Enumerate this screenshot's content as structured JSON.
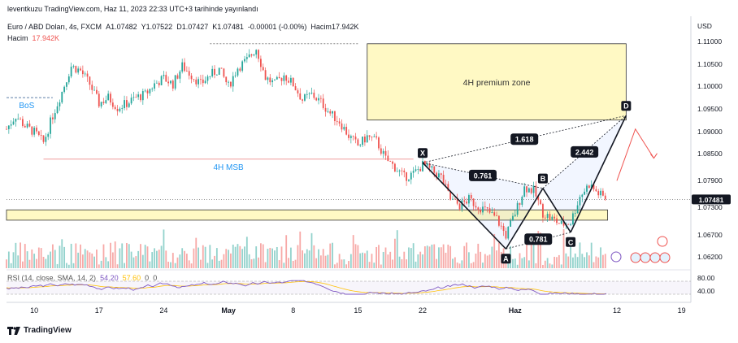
{
  "header": {
    "attribution": "leventkuzu TradingView.com, Haz 11, 2023 22:33 UTC+3 tarihinde yayınlandı",
    "symbol": "Euro / ABD Doları, 4s, FXCM",
    "a_label": "A",
    "a_value": "1.07482",
    "y_label": "Y",
    "y_value": "1.07522",
    "d_label": "D",
    "d_value": "1.07427",
    "k_label": "K",
    "k_value": "1.07481",
    "change": "-0.00001 (-0.00%)",
    "volume_label": "Hacim",
    "volume_value": "17.942K",
    "volume_row_label": "Hacim",
    "volume_row_value": "17.942K",
    "rsi_label": "RSI (14, close, SMA, 14, 2)",
    "rsi_value": "54.20",
    "rsi_ma_value": "57.60",
    "rsi_extra_1": "0",
    "rsi_extra_2": "0"
  },
  "axis": {
    "currency": "USD",
    "price_ticks": [
      "1.11000",
      "1.10500",
      "1.10000",
      "1.09500",
      "1.09000",
      "1.08500",
      "1.07900",
      "1.07300",
      "1.06700",
      "1.06200"
    ],
    "current_price": "1.07481",
    "rsi_ticks": [
      "80.00",
      "40.00"
    ],
    "time_ticks": [
      "10",
      "17",
      "24",
      "May",
      "8",
      "15",
      "22",
      "Haz",
      "12",
      "19"
    ]
  },
  "annotations": {
    "premium_zone": "4H premium zone",
    "msb": "4H MSB",
    "bos": "BoS",
    "points": [
      "X",
      "A",
      "B",
      "C",
      "D"
    ],
    "ratios": [
      "1.618",
      "2.442",
      "0.761",
      "0.781"
    ]
  },
  "colors": {
    "up": "#26a69a",
    "down": "#ef5350",
    "zone": "#fff9c4",
    "zone_border": "#333333",
    "msb_line": "#ef9a9a",
    "bos_line": "#5d7fa8",
    "rsi_line": "#7e57c2",
    "rsi_ma": "#ffc107",
    "premium_text": "#333333"
  },
  "chart_data": {
    "type": "candlestick",
    "symbol": "Euro / ABD Doları",
    "timeframe": "4s",
    "last_ohlc": {
      "open": 1.07482,
      "high": 1.07522,
      "low": 1.07427,
      "close": 1.07481
    },
    "ylim": [
      1.0595,
      1.112
    ],
    "price_path": [
      [
        "2023-04-07",
        1.0905
      ],
      [
        "2023-04-08",
        1.0935
      ],
      [
        "2023-04-09",
        1.0912
      ],
      [
        "2023-04-10",
        1.0898
      ],
      [
        "2023-04-11",
        1.0875
      ],
      [
        "2023-04-12",
        1.0935
      ],
      [
        "2023-04-13",
        1.0988
      ],
      [
        "2023-04-14",
        1.1045
      ],
      [
        "2023-04-15",
        1.1035
      ],
      [
        "2023-04-16",
        1.1005
      ],
      [
        "2023-04-17",
        1.0962
      ],
      [
        "2023-04-18",
        1.0975
      ],
      [
        "2023-04-19",
        1.0953
      ],
      [
        "2023-04-20",
        1.0962
      ],
      [
        "2023-04-21",
        1.0975
      ],
      [
        "2023-04-22",
        1.0982
      ],
      [
        "2023-04-23",
        1.1005
      ],
      [
        "2023-04-24",
        1.1018
      ],
      [
        "2023-04-25",
        1.1005
      ],
      [
        "2023-04-26",
        1.1045
      ],
      [
        "2023-04-27",
        1.1025
      ],
      [
        "2023-04-28",
        1.1005
      ],
      [
        "2023-04-29",
        1.1025
      ],
      [
        "2023-04-30",
        1.1038
      ],
      [
        "2023-05-01",
        1.1
      ],
      [
        "2023-05-02",
        1.1042
      ],
      [
        "2023-05-03",
        1.1058
      ],
      [
        "2023-05-04",
        1.1085
      ],
      [
        "2023-05-05",
        1.102
      ],
      [
        "2023-05-06",
        1.1005
      ],
      [
        "2023-05-07",
        1.1025
      ],
      [
        "2023-05-08",
        1.1005
      ],
      [
        "2023-05-09",
        1.097
      ],
      [
        "2023-05-10",
        1.0982
      ],
      [
        "2023-05-11",
        1.0965
      ],
      [
        "2023-05-12",
        1.094
      ],
      [
        "2023-05-13",
        1.0922
      ],
      [
        "2023-05-14",
        1.089
      ],
      [
        "2023-05-15",
        1.0868
      ],
      [
        "2023-05-16",
        1.0888
      ],
      [
        "2023-05-17",
        1.0878
      ],
      [
        "2023-05-18",
        1.0838
      ],
      [
        "2023-05-19",
        1.082
      ],
      [
        "2023-05-20",
        1.0798
      ],
      [
        "2023-05-21",
        1.0805
      ],
      [
        "2023-05-22",
        1.0825
      ],
      [
        "2023-05-23",
        1.0812
      ],
      [
        "2023-05-24",
        1.0798
      ],
      [
        "2023-05-25",
        1.0748
      ],
      [
        "2023-05-26",
        1.0735
      ],
      [
        "2023-05-27",
        1.0748
      ],
      [
        "2023-05-28",
        1.0733
      ],
      [
        "2023-05-29",
        1.0722
      ],
      [
        "2023-05-30",
        1.0705
      ],
      [
        "2023-05-31",
        1.0668
      ],
      [
        "2023-06-01",
        1.0718
      ],
      [
        "2023-06-02",
        1.0775
      ],
      [
        "2023-06-03",
        1.0768
      ],
      [
        "2023-06-04",
        1.0718
      ],
      [
        "2023-06-05",
        1.0705
      ],
      [
        "2023-06-06",
        1.0692
      ],
      [
        "2023-06-07",
        1.0698
      ],
      [
        "2023-06-08",
        1.0755
      ],
      [
        "2023-06-09",
        1.0782
      ],
      [
        "2023-06-10",
        1.0761
      ],
      [
        "2023-06-11",
        1.0748
      ]
    ],
    "horizontal_lines": [
      {
        "label": "BoS",
        "value": 1.0975
      },
      {
        "label": "4H MSB",
        "value": 1.0838
      }
    ],
    "zones": [
      {
        "label": "4H premium zone",
        "from": "2023-05-16",
        "to": "2023-06-13",
        "y1": 1.0925,
        "y2": 1.1095
      },
      {
        "label": "",
        "from": "2023-04-07",
        "to": "2023-06-11",
        "y1": 1.0702,
        "y2": 1.0725
      }
    ],
    "pattern_points": [
      {
        "label": "X",
        "x": "2023-05-22",
        "y": 1.083
      },
      {
        "label": "A",
        "x": "2023-05-31",
        "y": 1.0638
      },
      {
        "label": "B",
        "x": "2023-06-04",
        "y": 1.0773
      },
      {
        "label": "C",
        "x": "2023-06-07",
        "y": 1.0675
      },
      {
        "label": "D",
        "x": "2023-06-13",
        "y": 1.0935
      }
    ],
    "ratios": [
      {
        "label": "0.761",
        "segment": "XA-B"
      },
      {
        "label": "0.781",
        "segment": "AB-C"
      },
      {
        "label": "1.618",
        "segment": "XA-D"
      },
      {
        "label": "2.442",
        "segment": "BC-D"
      }
    ],
    "projection_arrow": [
      [
        "2023-06-12",
        1.079
      ],
      [
        "2023-06-14",
        1.0905
      ],
      [
        "2023-06-16",
        1.084
      ]
    ],
    "rsi": {
      "ylim": [
        20,
        100
      ],
      "levels": [
        70,
        30
      ],
      "last": 54.2,
      "ma_last": 57.6
    }
  }
}
